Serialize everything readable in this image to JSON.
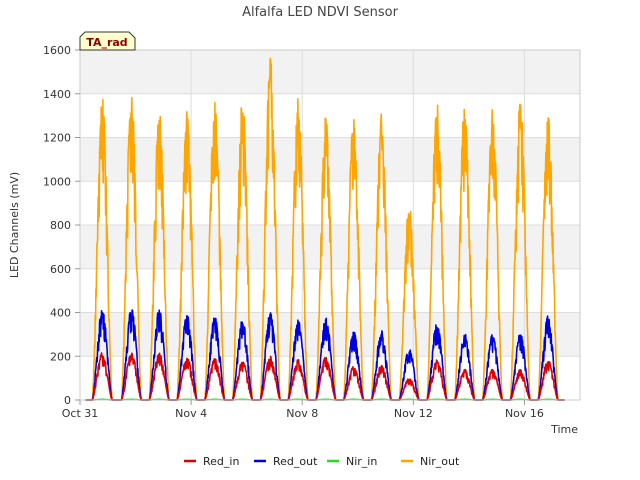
{
  "chart_data": {
    "type": "line",
    "title": "Alfalfa LED NDVI Sensor",
    "xlabel": "Time",
    "ylabel": "LED Channels (mV)",
    "ylim": [
      0,
      1600
    ],
    "yticks": [
      0,
      200,
      400,
      600,
      800,
      1000,
      1200,
      1400,
      1600
    ],
    "xlim_days": [
      0,
      18
    ],
    "xticks": [
      {
        "day": 0,
        "label": "Oct 31"
      },
      {
        "day": 4,
        "label": "Nov 4"
      },
      {
        "day": 8,
        "label": "Nov 8"
      },
      {
        "day": 12,
        "label": "Nov 12"
      },
      {
        "day": 16,
        "label": "Nov 16"
      }
    ],
    "badge": "TA_rad",
    "grid": true,
    "legend_position": "bottom",
    "day_centers": [
      0.8,
      1.85,
      2.85,
      3.85,
      4.85,
      5.85,
      6.85,
      7.85,
      8.85,
      9.85,
      10.85,
      11.85,
      12.85,
      13.85,
      14.85,
      15.85,
      16.85
    ],
    "day_halfwidth": 0.36,
    "series": [
      {
        "name": "Red_in",
        "color": "#dd0000",
        "daily_peaks": [
          220,
          225,
          215,
          195,
          190,
          180,
          200,
          185,
          200,
          155,
          160,
          100,
          185,
          140,
          140,
          140,
          185
        ]
      },
      {
        "name": "Red_out",
        "color": "#0000dd",
        "daily_peaks": [
          415,
          430,
          415,
          395,
          385,
          370,
          400,
          365,
          380,
          315,
          320,
          240,
          355,
          305,
          300,
          305,
          385
        ]
      },
      {
        "name": "Nir_in",
        "color": "#22dd22",
        "daily_peaks": [
          3,
          3,
          3,
          3,
          3,
          3,
          3,
          3,
          3,
          3,
          3,
          3,
          3,
          3,
          3,
          3,
          3
        ]
      },
      {
        "name": "Nir_out",
        "color": "#ffa500",
        "daily_peaks": [
          1385,
          1410,
          1335,
          1335,
          1395,
          1380,
          1580,
          1380,
          1310,
          1320,
          1310,
          905,
          1370,
          1360,
          1335,
          1375,
          1320
        ]
      }
    ]
  }
}
